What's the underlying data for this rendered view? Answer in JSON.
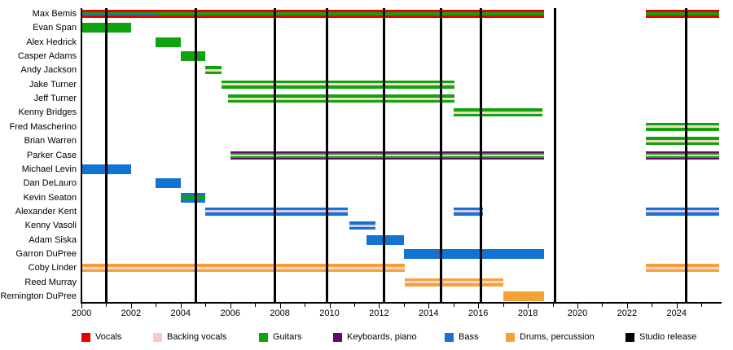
{
  "chart_data": {
    "type": "bar",
    "subtype": "band-member-timeline-gantt",
    "title": "",
    "x_axis": {
      "start_year": 2000,
      "end_year": 2025.7,
      "major_tick_labels": [
        "2000",
        "2002",
        "2004",
        "2006",
        "2008",
        "2010",
        "2012",
        "2014",
        "2016",
        "2018",
        "2020",
        "2022",
        "2024"
      ],
      "major_tick_years": [
        2000,
        2002,
        2004,
        2006,
        2008,
        2010,
        2012,
        2014,
        2016,
        2018,
        2020,
        2022,
        2024
      ],
      "minor_tick_every": 1
    },
    "palette": {
      "red": "#e80000",
      "pink": "#f9c9c9",
      "green": "#10a310",
      "purple": "#64086e",
      "blue": "#1472d0",
      "lavender": "#d9c9e9",
      "cream": "#f2d9bd",
      "cream2": "#fbd3cd",
      "orange": "#f6a137",
      "black": "#000000"
    },
    "legend": [
      {
        "label": "Vocals",
        "color": "red"
      },
      {
        "label": "Backing vocals",
        "color": "pink"
      },
      {
        "label": "Guitars",
        "color": "green"
      },
      {
        "label": "Keyboards, piano",
        "color": "purple"
      },
      {
        "label": "Bass",
        "color": "blue"
      },
      {
        "label": "Drums, percussion",
        "color": "orange"
      },
      {
        "label": "Studio release",
        "color": "black"
      }
    ],
    "release_lines": {
      "label": "Studio release",
      "years": [
        2001.0,
        2004.6,
        2007.8,
        2009.9,
        2012.2,
        2014.5,
        2016.1,
        2019.1,
        2024.4
      ]
    },
    "stripe_styles": {
      "rgr": [
        [
          "red",
          3
        ],
        [
          "green",
          4
        ],
        [
          "red",
          3
        ]
      ],
      "g": [
        [
          "green",
          12
        ]
      ],
      "gcg": [
        [
          "green",
          3.5
        ],
        [
          "cream",
          3
        ],
        [
          "green",
          3.5
        ]
      ],
      "pgcgp": [
        [
          "purple",
          2
        ],
        [
          "green",
          2
        ],
        [
          "cream",
          2
        ],
        [
          "green",
          2
        ],
        [
          "purple",
          2
        ]
      ],
      "b": [
        [
          "blue",
          12
        ]
      ],
      "bgb": [
        [
          "blue",
          4
        ],
        [
          "green",
          4
        ],
        [
          "blue",
          4
        ]
      ],
      "blb": [
        [
          "blue",
          3.5
        ],
        [
          "lavender",
          3
        ],
        [
          "blue",
          3.5
        ]
      ],
      "o": [
        [
          "orange",
          12
        ]
      ],
      "oco": [
        [
          "orange",
          3.5
        ],
        [
          "cream2",
          3
        ],
        [
          "orange",
          3.5
        ]
      ]
    },
    "members": [
      {
        "name": "Max Bemis",
        "segments": [
          {
            "start": 2000,
            "end": 2018.65,
            "style": "rgr",
            "overlay": {
              "color": "blue",
              "start": 2000,
              "end": 2003.1,
              "h": 2
            }
          },
          {
            "start": 2022.75,
            "end": 2025.7,
            "style": "rgr"
          }
        ]
      },
      {
        "name": "Evan Span",
        "segments": [
          {
            "start": 2000,
            "end": 2002,
            "style": "g"
          }
        ]
      },
      {
        "name": "Alex Hedrick",
        "segments": [
          {
            "start": 2003,
            "end": 2004,
            "style": "g"
          }
        ]
      },
      {
        "name": "Casper Adams",
        "segments": [
          {
            "start": 2004,
            "end": 2005,
            "style": "g"
          }
        ]
      },
      {
        "name": "Andy Jackson",
        "segments": [
          {
            "start": 2005,
            "end": 2005.65,
            "style": "gcg"
          }
        ]
      },
      {
        "name": "Jake Turner",
        "segments": [
          {
            "start": 2005.65,
            "end": 2015.05,
            "style": "gcg"
          }
        ]
      },
      {
        "name": "Jeff Turner",
        "segments": [
          {
            "start": 2005.9,
            "end": 2015.05,
            "style": "gcg"
          }
        ]
      },
      {
        "name": "Kenny Bridges",
        "segments": [
          {
            "start": 2015,
            "end": 2018.6,
            "style": "gcg"
          }
        ]
      },
      {
        "name": "Fred Mascherino",
        "segments": [
          {
            "start": 2022.75,
            "end": 2025.7,
            "style": "gcg"
          }
        ]
      },
      {
        "name": "Brian Warren",
        "segments": [
          {
            "start": 2022.75,
            "end": 2025.7,
            "style": "gcg"
          }
        ]
      },
      {
        "name": "Parker Case",
        "segments": [
          {
            "start": 2006,
            "end": 2018.65,
            "style": "pgcgp"
          },
          {
            "start": 2022.75,
            "end": 2025.7,
            "style": "pgcgp"
          }
        ]
      },
      {
        "name": "Michael Levin",
        "segments": [
          {
            "start": 2000,
            "end": 2002,
            "style": "b"
          }
        ]
      },
      {
        "name": "Dan DeLauro",
        "segments": [
          {
            "start": 2003,
            "end": 2004,
            "style": "b"
          }
        ]
      },
      {
        "name": "Kevin Seaton",
        "segments": [
          {
            "start": 2004,
            "end": 2005,
            "style": "bgb"
          }
        ]
      },
      {
        "name": "Alexander Kent",
        "segments": [
          {
            "start": 2005,
            "end": 2010.75,
            "style": "blb"
          },
          {
            "start": 2015,
            "end": 2016.2,
            "style": "blb"
          },
          {
            "start": 2022.75,
            "end": 2025.7,
            "style": "blb"
          }
        ]
      },
      {
        "name": "Kenny Vasoli",
        "segments": [
          {
            "start": 2010.8,
            "end": 2011.85,
            "style": "blb"
          }
        ]
      },
      {
        "name": "Adam Siska",
        "segments": [
          {
            "start": 2011.5,
            "end": 2013,
            "style": "b"
          }
        ]
      },
      {
        "name": "Garron DuPree",
        "segments": [
          {
            "start": 2013,
            "end": 2018.65,
            "style": "b"
          }
        ]
      },
      {
        "name": "Coby Linder",
        "segments": [
          {
            "start": 2000,
            "end": 2013.05,
            "style": "oco"
          },
          {
            "start": 2022.75,
            "end": 2025.7,
            "style": "oco"
          }
        ]
      },
      {
        "name": "Reed Murray",
        "segments": [
          {
            "start": 2013.05,
            "end": 2017,
            "style": "oco"
          }
        ]
      },
      {
        "name": "Remington DuPree",
        "segments": [
          {
            "start": 2017,
            "end": 2018.65,
            "style": "o"
          }
        ]
      }
    ]
  }
}
